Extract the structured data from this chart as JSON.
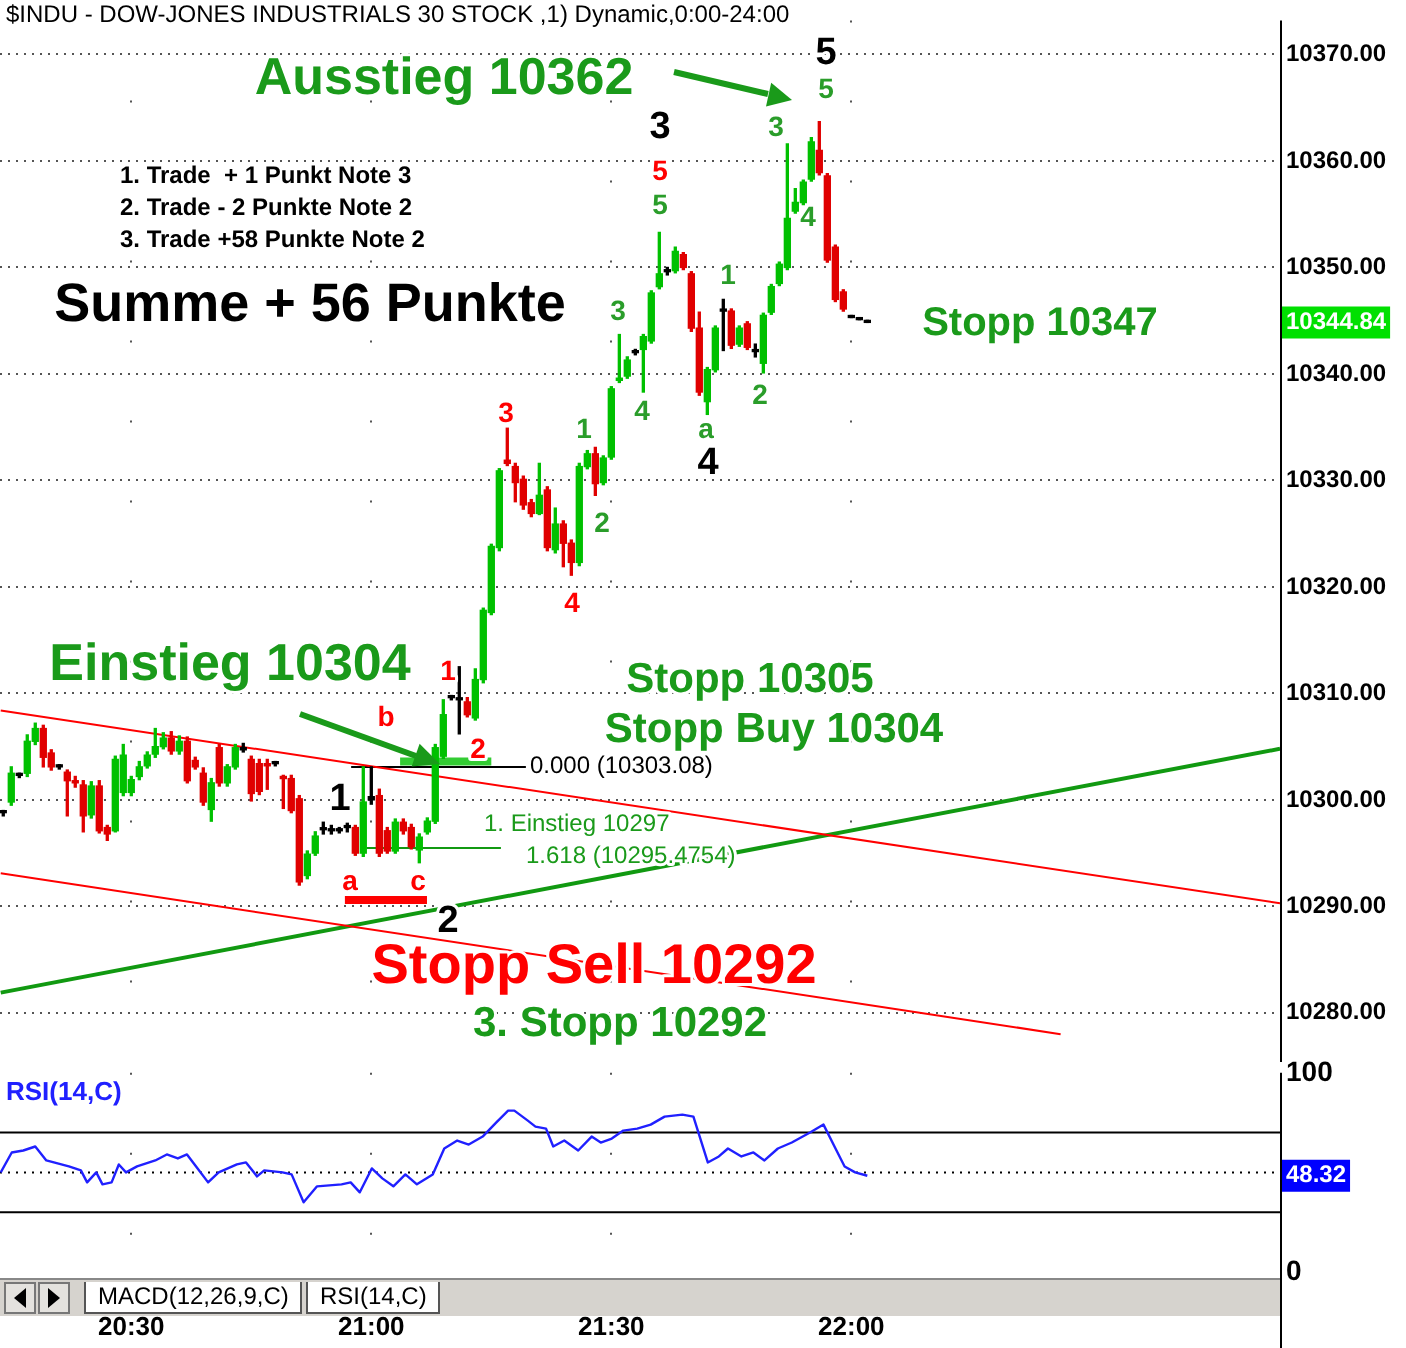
{
  "chart_data": [
    {
      "type": "candlestick",
      "title": "$INDU - DOW-JONES INDUSTRIALS 30 STOCK ,1) Dynamic,0:00-24:00",
      "x": [
        20.2333,
        20.25,
        20.2667,
        20.2833,
        20.3,
        20.3167,
        20.3333,
        20.35,
        20.3667,
        20.3833,
        20.4,
        20.4167,
        20.4333,
        20.45,
        20.4667,
        20.4833,
        20.5,
        20.5167,
        20.5333,
        20.55,
        20.5667,
        20.5833,
        20.6,
        20.6167,
        20.6333,
        20.65,
        20.6667,
        20.6833,
        20.7,
        20.7167,
        20.7333,
        20.75,
        20.7667,
        20.7833,
        20.8,
        20.8167,
        20.8333,
        20.85,
        20.8667,
        20.8833,
        20.9,
        20.9167,
        20.9333,
        20.95,
        20.9667,
        20.9833,
        21,
        21.0167,
        21.0333,
        21.05,
        21.0667,
        21.0833,
        21.1,
        21.1167,
        21.1333,
        21.15,
        21.1667,
        21.1833,
        21.2,
        21.2167,
        21.2333,
        21.25,
        21.2667,
        21.2833,
        21.3,
        21.3167,
        21.3333,
        21.35,
        21.3667,
        21.3833,
        21.4,
        21.4167,
        21.4333,
        21.45,
        21.4667,
        21.4833,
        21.5,
        21.5167,
        21.5333,
        21.55,
        21.5667,
        21.5833,
        21.6,
        21.6167,
        21.6333,
        21.65,
        21.6667,
        21.6833,
        21.7,
        21.7167,
        21.7333,
        21.75,
        21.7667,
        21.7833,
        21.8,
        21.8167,
        21.8333,
        21.85,
        21.8667,
        21.8833,
        21.9,
        21.9167,
        21.9333,
        21.95,
        21.9667,
        21.9833,
        22,
        22.0167,
        22.0333
      ],
      "ohlc": [
        [
          10298.8,
          10299.0,
          10298.5,
          10298.8
        ],
        [
          10299.8,
          10303.1,
          10299.5,
          10302.5
        ],
        [
          10302.3,
          10302.5,
          10302.1,
          10302.3
        ],
        [
          10302.5,
          10306.1,
          10302.2,
          10305.5
        ],
        [
          10305.5,
          10307.2,
          10305.2,
          10306.7
        ],
        [
          10306.7,
          10307.0,
          10303.1,
          10304.0
        ],
        [
          10304.4,
          10304.7,
          10302.8,
          10303.1
        ],
        [
          10303.1,
          10303.3,
          10302.9,
          10303.1
        ],
        [
          10302.6,
          10302.8,
          10298.5,
          10301.8
        ],
        [
          10301.8,
          10302.2,
          10301.2,
          10301.6
        ],
        [
          10301.4,
          10301.8,
          10297.0,
          10298.5
        ],
        [
          10298.6,
          10301.7,
          10298.3,
          10301.3
        ],
        [
          10301.3,
          10301.8,
          10296.9,
          10297.1
        ],
        [
          10297.4,
          10297.6,
          10296.2,
          10296.8
        ],
        [
          10297.1,
          10304.1,
          10297.0,
          10303.8
        ],
        [
          10300.7,
          10305.2,
          10300.4,
          10304.2
        ],
        [
          10300.7,
          10302.2,
          10300.4,
          10301.9
        ],
        [
          10302.2,
          10303.6,
          10301.9,
          10303.1
        ],
        [
          10303.2,
          10304.5,
          10303.0,
          10304.2
        ],
        [
          10304.3,
          10306.7,
          10304.0,
          10305.0
        ],
        [
          10305.0,
          10306.3,
          10304.8,
          10305.8
        ],
        [
          10305.8,
          10306.4,
          10304.3,
          10304.6
        ],
        [
          10304.6,
          10306.0,
          10304.3,
          10305.5
        ],
        [
          10305.5,
          10305.9,
          10301.6,
          10301.8
        ],
        [
          10303.7,
          10304.0,
          10302.9,
          10303.1
        ],
        [
          10302.5,
          10303.0,
          10299.5,
          10299.8
        ],
        [
          10299.1,
          10302.0,
          10298.0,
          10301.6
        ],
        [
          10304.9,
          10305.2,
          10301.3,
          10301.6
        ],
        [
          10301.6,
          10303.3,
          10301.3,
          10303.1
        ],
        [
          10303.1,
          10305.2,
          10302.9,
          10304.9
        ],
        [
          10304.7,
          10305.3,
          10304.5,
          10304.9
        ],
        [
          10303.8,
          10304.1,
          10299.9,
          10300.6
        ],
        [
          10303.4,
          10303.8,
          10300.5,
          10300.8
        ],
        [
          10303.4,
          10303.8,
          10301.0,
          10303.2
        ],
        [
          10303.4,
          10303.6,
          10303.2,
          10303.4
        ],
        [
          10302.2,
          10302.3,
          10299.2,
          10302.0
        ],
        [
          10302.0,
          10302.3,
          10298.8,
          10299.0
        ],
        [
          10300.1,
          10300.4,
          10292.0,
          10292.3
        ],
        [
          10292.9,
          10295.2,
          10292.6,
          10294.9
        ],
        [
          10295.0,
          10297.0,
          10294.8,
          10296.6
        ],
        [
          10297.3,
          10297.9,
          10296.8,
          10297.2
        ],
        [
          10297.2,
          10297.6,
          10296.8,
          10297.1
        ],
        [
          10297.1,
          10297.4,
          10296.9,
          10297.1
        ],
        [
          10297.4,
          10297.8,
          10297.0,
          10297.5
        ],
        [
          10297.4,
          10297.6,
          10294.8,
          10295.0
        ],
        [
          10295.0,
          10303.1,
          10294.7,
          10299.8
        ],
        [
          10300.0,
          10303.1,
          10299.6,
          10300.3
        ],
        [
          10300.4,
          10301.0,
          10294.7,
          10295.0
        ],
        [
          10297.1,
          10297.4,
          10295.0,
          10295.2
        ],
        [
          10295.2,
          10298.2,
          10295.0,
          10297.9
        ],
        [
          10297.9,
          10298.2,
          10296.8,
          10297.1
        ],
        [
          10297.4,
          10297.7,
          10295.4,
          10295.6
        ],
        [
          10295.3,
          10296.8,
          10294.1,
          10296.5
        ],
        [
          10297.0,
          10298.3,
          10296.8,
          10298.0
        ],
        [
          10298.0,
          10305.2,
          10297.8,
          10304.9
        ],
        [
          10304.1,
          10309.4,
          10303.9,
          10308.0
        ],
        [
          10309.6,
          10309.8,
          10309.4,
          10309.6
        ],
        [
          10309.5,
          10312.5,
          10306.2,
          10309.4
        ],
        [
          10309.2,
          10309.6,
          10307.8,
          10308.0
        ],
        [
          10307.7,
          10312.3,
          10307.5,
          10311.3
        ],
        [
          10311.3,
          10318.0,
          10311.0,
          10317.8
        ],
        [
          10317.6,
          10324.0,
          10317.4,
          10323.8
        ],
        [
          10323.7,
          10331.1,
          10323.4,
          10330.9
        ],
        [
          10331.9,
          10334.9,
          10331.4,
          10331.6
        ],
        [
          10331.3,
          10331.6,
          10328.0,
          10329.8
        ],
        [
          10330.1,
          10330.4,
          10327.3,
          10327.7
        ],
        [
          10327.9,
          10328.2,
          10326.6,
          10326.9
        ],
        [
          10326.9,
          10331.6,
          10326.8,
          10328.6
        ],
        [
          10329.1,
          10329.4,
          10323.4,
          10323.7
        ],
        [
          10323.5,
          10327.4,
          10323.2,
          10325.9
        ],
        [
          10325.9,
          10326.2,
          10321.9,
          10324.1
        ],
        [
          10324.1,
          10324.4,
          10321.1,
          10322.3
        ],
        [
          10322.3,
          10331.6,
          10322.0,
          10331.3
        ],
        [
          10331.3,
          10332.8,
          10331.1,
          10332.5
        ],
        [
          10332.5,
          10333.1,
          10328.6,
          10329.7
        ],
        [
          10329.8,
          10332.3,
          10329.6,
          10332.1
        ],
        [
          10332.2,
          10338.8,
          10332.0,
          10338.6
        ],
        [
          10339.4,
          10343.7,
          10339.2,
          10339.6
        ],
        [
          10339.8,
          10341.6,
          10339.6,
          10341.3
        ],
        [
          10342.0,
          10342.3,
          10341.8,
          10342.1
        ],
        [
          10342.3,
          10343.7,
          10338.3,
          10343.5
        ],
        [
          10343.1,
          10347.8,
          10342.9,
          10347.6
        ],
        [
          10348.2,
          10353.3,
          10348.0,
          10349.4
        ],
        [
          10349.6,
          10350.0,
          10349.3,
          10349.7
        ],
        [
          10349.7,
          10351.9,
          10349.5,
          10351.5
        ],
        [
          10351.2,
          10351.4,
          10349.8,
          10350.0
        ],
        [
          10349.4,
          10349.6,
          10344.0,
          10344.3
        ],
        [
          10344.3,
          10345.8,
          10338.0,
          10338.3
        ],
        [
          10337.4,
          10340.6,
          10336.2,
          10340.4
        ],
        [
          10340.4,
          10344.5,
          10340.2,
          10344.3
        ],
        [
          10345.9,
          10347.0,
          10342.2,
          10346.0
        ],
        [
          10345.9,
          10346.1,
          10342.4,
          10342.7
        ],
        [
          10342.8,
          10344.5,
          10342.6,
          10344.3
        ],
        [
          10344.7,
          10344.9,
          10342.3,
          10342.5
        ],
        [
          10342.2,
          10342.8,
          10341.6,
          10342.1
        ],
        [
          10341.0,
          10345.7,
          10340.1,
          10345.5
        ],
        [
          10345.8,
          10348.4,
          10345.6,
          10348.2
        ],
        [
          10348.5,
          10350.5,
          10348.3,
          10350.3
        ],
        [
          10350.0,
          10361.6,
          10349.8,
          10354.6
        ],
        [
          10355.3,
          10357.4,
          10355.1,
          10356.1
        ],
        [
          10356.1,
          10358.2,
          10355.9,
          10358.0
        ],
        [
          10358.3,
          10362.2,
          10358.1,
          10361.8
        ],
        [
          10361.0,
          10363.7,
          10358.7,
          10358.9
        ],
        [
          10358.6,
          10358.8,
          10350.5,
          10350.7
        ],
        [
          10351.9,
          10352.1,
          10346.8,
          10347.0
        ],
        [
          10347.7,
          10347.9,
          10345.9,
          10346.1
        ],
        [
          10345.3,
          10345.3,
          10345.3,
          10345.3
        ],
        [
          10345.1,
          10345.1,
          10345.1,
          10345.1
        ],
        [
          10344.84,
          10344.84,
          10344.84,
          10344.84
        ]
      ],
      "colors": [
        "#000000",
        "#00c000",
        "#000000",
        "#00c000",
        "#00c000",
        "#e00000",
        "#e00000",
        "#000000",
        "#e00000",
        "#e00000",
        "#e00000",
        "#00c000",
        "#e00000",
        "#e00000",
        "#00c000",
        "#00c000",
        "#00c000",
        "#00c000",
        "#00c000",
        "#00c000",
        "#00c000",
        "#e00000",
        "#00c000",
        "#e00000",
        "#e00000",
        "#e00000",
        "#00c000",
        "#e00000",
        "#00c000",
        "#00c000",
        "#000000",
        "#e00000",
        "#e00000",
        "#e00000",
        "#000000",
        "#e00000",
        "#e00000",
        "#e00000",
        "#00c000",
        "#00c000",
        "#000000",
        "#000000",
        "#000000",
        "#000000",
        "#e00000",
        "#00c000",
        "#000000",
        "#e00000",
        "#e00000",
        "#00c000",
        "#e00000",
        "#e00000",
        "#00c000",
        "#00c000",
        "#00c000",
        "#00c000",
        "#000000",
        "#000000",
        "#e00000",
        "#00c000",
        "#00c000",
        "#00c000",
        "#00c000",
        "#e00000",
        "#e00000",
        "#e00000",
        "#e00000",
        "#00c000",
        "#e00000",
        "#00c000",
        "#e00000",
        "#e00000",
        "#00c000",
        "#00c000",
        "#e00000",
        "#00c000",
        "#00c000",
        "#00c000",
        "#00c000",
        "#000000",
        "#00c000",
        "#00c000",
        "#00c000",
        "#000000",
        "#00c000",
        "#e00000",
        "#e00000",
        "#e00000",
        "#00c000",
        "#00c000",
        "#000000",
        "#e00000",
        "#00c000",
        "#e00000",
        "#000000",
        "#00c000",
        "#00c000",
        "#00c000",
        "#00c000",
        "#00c000",
        "#00c000",
        "#00c000",
        "#e00000",
        "#e00000",
        "#e00000",
        "#e00000",
        "#000000",
        "#000000",
        "#000000"
      ],
      "series": [
        {
          "type": "line",
          "color": "#ff0000",
          "x": [
            20.228,
            22.893
          ],
          "values": [
            10308.4,
            10290.3
          ]
        },
        {
          "type": "line",
          "color": "#ff0000",
          "x": [
            20.228,
            22.436
          ],
          "values": [
            10293.1,
            10278.0
          ]
        },
        {
          "type": "line",
          "color": "#119911",
          "x": [
            20.228,
            22.893
          ],
          "values": [
            10281.9,
            10304.8
          ]
        },
        {
          "type": "line",
          "color": "#000000",
          "x": [
            20.958,
            21.322
          ],
          "values": [
            10303.08,
            10303.08
          ]
        },
        {
          "type": "line",
          "color": "#119911",
          "x": [
            20.99,
            21.27
          ],
          "values": [
            10295.4754,
            10295.4754
          ]
        },
        {
          "type": "line",
          "color": "#33cc33",
          "x": [
            21.06,
            21.25
          ],
          "values": [
            10303.6,
            10303.6
          ]
        },
        {
          "type": "line",
          "color": "#ff0000",
          "x": [
            20.945,
            21.116
          ],
          "values": [
            10290.6,
            10290.6
          ]
        }
      ],
      "annotations": [
        "Ausstieg 10362",
        "1. Trade  + 1 Punkt Note 3",
        "2. Trade - 2 Punkte Note 2",
        "3. Trade +58 Punkte Note 2",
        "Summe + 56 Punkte",
        "Stopp 10347",
        "Einstieg 10304",
        "Stopp 10305",
        "Stopp Buy 10304",
        "Stopp Sell 10292",
        "3. Stopp 10292",
        "0.000 (10303.08)",
        "1. Einstieg 10297",
        "1.618 (10295.4754)",
        "1",
        "2",
        "3",
        "4",
        "1",
        "2",
        "3",
        "4",
        "3",
        "5",
        "5",
        "a",
        "4",
        "1",
        "2",
        "3",
        "4",
        "5",
        "5",
        "1",
        "b",
        "a",
        "c",
        "2",
        "10344.84"
      ],
      "xlim": [
        20.2265,
        22.893
      ],
      "xticks": [
        {
          "value": 20.5,
          "label": null
        },
        {
          "value": 21,
          "label": null
        },
        {
          "value": 21.5,
          "label": null
        },
        {
          "value": 22,
          "label": null
        }
      ],
      "ylim": [
        10277.3,
        10373.2
      ],
      "yticks": [
        {
          "value": 10280,
          "label": "10280.00"
        },
        {
          "value": 10290,
          "label": "10290.00"
        },
        {
          "value": 10300,
          "label": "10300.00"
        },
        {
          "value": 10310,
          "label": "10310.00"
        },
        {
          "value": 10320,
          "label": "10320.00"
        },
        {
          "value": 10330,
          "label": "10330.00"
        },
        {
          "value": 10340,
          "label": "10340.00"
        },
        {
          "value": 10350,
          "label": "10350.00"
        },
        {
          "value": 10360,
          "label": "10360.00"
        },
        {
          "value": 10370,
          "label": "10370.00"
        }
      ],
      "tick_labels": "y",
      "grid": true
    },
    {
      "type": "line",
      "title": "RSI(14,C)",
      "series": [
        {
          "color": "#2020ff",
          "x": [
            20.228,
            20.251,
            20.275,
            20.3,
            20.323,
            20.37,
            20.395,
            20.408,
            20.427,
            20.44,
            20.459,
            20.474,
            20.489,
            20.512,
            20.55,
            20.574,
            20.597,
            20.616,
            20.635,
            20.66,
            20.682,
            20.72,
            20.739,
            20.762,
            20.777,
            20.815,
            20.834,
            20.859,
            20.887,
            20.938,
            20.957,
            20.976,
            21.001,
            21.023,
            21.046,
            21.071,
            21.095,
            21.128,
            21.152,
            21.179,
            21.203,
            21.232,
            21.26,
            21.285,
            21.298,
            21.326,
            21.342,
            21.364,
            21.379,
            21.402,
            21.431,
            21.459,
            21.478,
            21.501,
            21.525,
            21.554,
            21.582,
            21.611,
            21.648,
            21.671,
            21.701,
            21.724,
            21.743,
            21.771,
            21.796,
            21.819,
            21.847,
            21.876,
            21.914,
            21.942,
            21.967,
            21.986,
            22.008,
            22.0333
          ],
          "values": [
            50,
            60,
            61,
            63,
            56,
            53,
            51,
            45,
            50,
            44,
            45,
            54,
            50,
            53,
            56,
            59,
            57,
            59,
            53,
            45,
            50,
            54,
            55,
            48,
            51,
            50,
            49,
            35,
            43,
            44,
            45,
            40,
            52,
            47,
            43,
            49,
            44,
            49,
            62,
            66,
            64,
            68,
            75,
            81,
            81,
            76,
            73,
            72,
            63,
            66,
            61,
            68,
            65,
            67,
            71,
            72,
            74,
            78,
            79,
            78,
            55,
            58,
            62,
            58,
            60,
            56,
            62,
            65,
            70,
            74,
            62,
            53,
            50,
            48.32
          ]
        }
      ],
      "annotations": [
        "MACD(12,26,9,C)",
        "RSI(14,C)",
        "48.32"
      ],
      "ref_lines": [
        {
          "axis": "y",
          "value": 70,
          "color": "#000000"
        },
        {
          "axis": "y",
          "value": 30,
          "color": "#000000"
        },
        {
          "axis": "y",
          "value": 50,
          "color": "#000000",
          "line_style": "dotted"
        }
      ],
      "xlim": [
        20.2265,
        22.893
      ],
      "xticks": [
        {
          "value": 20.5,
          "label": "20:30"
        },
        {
          "value": 21,
          "label": "21:00"
        },
        {
          "value": 21.5,
          "label": "21:30"
        },
        {
          "value": 22,
          "label": "22:00"
        }
      ],
      "ylim": [
        0,
        100
      ],
      "yticks": [
        0,
        100
      ],
      "grid": "x"
    }
  ]
}
